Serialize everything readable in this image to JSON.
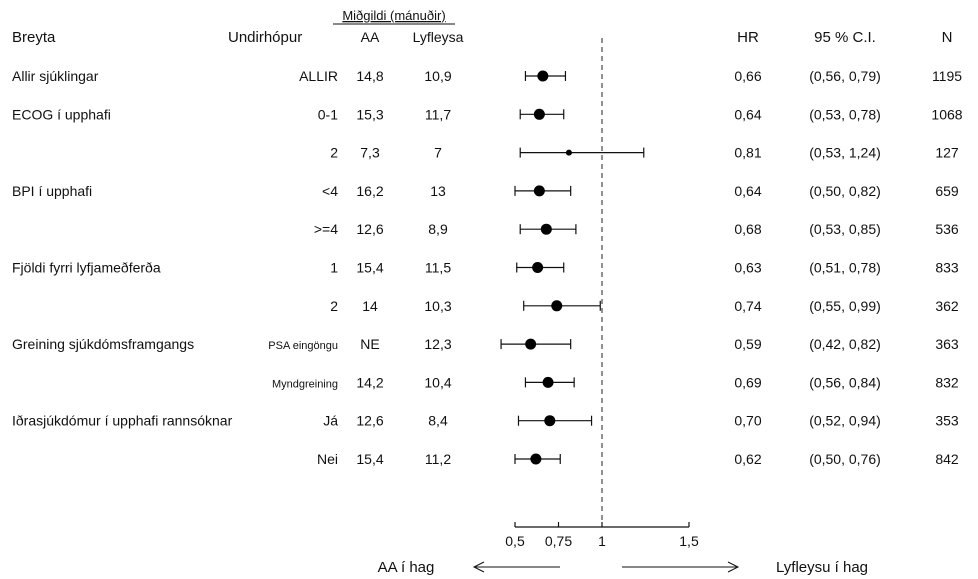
{
  "header": {
    "group_label": "Miðgildi (mánuðir)",
    "columns": {
      "variable": "Breyta",
      "subgroup": "Undirhópur",
      "aa": "AA",
      "placebo": "Lyfleysa",
      "hr": "HR",
      "ci": "95 % C.I.",
      "n": "N"
    }
  },
  "footer": {
    "left_label": "AA í hag",
    "right_label": "Lyfleysu í hag"
  },
  "chart_data": {
    "type": "forest",
    "x_axis": {
      "ticks": [
        0.5,
        0.75,
        1,
        1.5
      ],
      "tick_labels": [
        "0,5",
        "0,75",
        "1",
        "1,5"
      ],
      "reference_line": 1
    },
    "rows": [
      {
        "variable": "Allir sjúklingar",
        "subgroup": "ALLIR",
        "aa": "14,8",
        "placebo": "10,9",
        "hr_label": "0,66",
        "ci_label": "(0,56, 0,79)",
        "n": "1195",
        "hr": 0.66,
        "lo": 0.56,
        "hi": 0.79
      },
      {
        "variable": "ECOG í upphafi",
        "subgroup": "0-1",
        "aa": "15,3",
        "placebo": "11,7",
        "hr_label": "0,64",
        "ci_label": "(0,53, 0,78)",
        "n": "1068",
        "hr": 0.64,
        "lo": 0.53,
        "hi": 0.78
      },
      {
        "variable": "",
        "subgroup": "2",
        "aa": "7,3",
        "placebo": "7",
        "hr_label": "0,81",
        "ci_label": "(0,53, 1,24)",
        "n": "127",
        "hr": 0.81,
        "lo": 0.53,
        "hi": 1.24
      },
      {
        "variable": "BPI í upphafi",
        "subgroup": "<4",
        "aa": "16,2",
        "placebo": "13",
        "hr_label": "0,64",
        "ci_label": "(0,50, 0,82)",
        "n": "659",
        "hr": 0.64,
        "lo": 0.5,
        "hi": 0.82
      },
      {
        "variable": "",
        "subgroup": ">=4",
        "aa": "12,6",
        "placebo": "8,9",
        "hr_label": "0,68",
        "ci_label": "(0,53, 0,85)",
        "n": "536",
        "hr": 0.68,
        "lo": 0.53,
        "hi": 0.85
      },
      {
        "variable": "Fjöldi fyrri lyfjameðferða",
        "subgroup": "1",
        "aa": "15,4",
        "placebo": "11,5",
        "hr_label": "0,63",
        "ci_label": "(0,51, 0,78)",
        "n": "833",
        "hr": 0.63,
        "lo": 0.51,
        "hi": 0.78
      },
      {
        "variable": "",
        "subgroup": "2",
        "aa": "14",
        "placebo": "10,3",
        "hr_label": "0,74",
        "ci_label": "(0,55, 0,99)",
        "n": "362",
        "hr": 0.74,
        "lo": 0.55,
        "hi": 0.99
      },
      {
        "variable": "Greining sjúkdómsframgangs",
        "subgroup": "PSA eingöngu",
        "aa": "NE",
        "placebo": "12,3",
        "hr_label": "0,59",
        "ci_label": "(0,42, 0,82)",
        "n": "363",
        "hr": 0.59,
        "lo": 0.42,
        "hi": 0.82
      },
      {
        "variable": "",
        "subgroup": "Myndgreining",
        "aa": "14,2",
        "placebo": "10,4",
        "hr_label": "0,69",
        "ci_label": "(0,56, 0,84)",
        "n": "832",
        "hr": 0.69,
        "lo": 0.56,
        "hi": 0.84
      },
      {
        "variable": "Iðrasjúkdómur í upphafi rannsóknar",
        "subgroup": "Já",
        "aa": "12,6",
        "placebo": "8,4",
        "hr_label": "0,70",
        "ci_label": "(0,52, 0,94)",
        "n": "353",
        "hr": 0.7,
        "lo": 0.52,
        "hi": 0.94
      },
      {
        "variable": "",
        "subgroup": "Nei",
        "aa": "15,4",
        "placebo": "11,2",
        "hr_label": "0,62",
        "ci_label": "(0,50, 0,76)",
        "n": "842",
        "hr": 0.62,
        "lo": 0.5,
        "hi": 0.76
      }
    ]
  }
}
